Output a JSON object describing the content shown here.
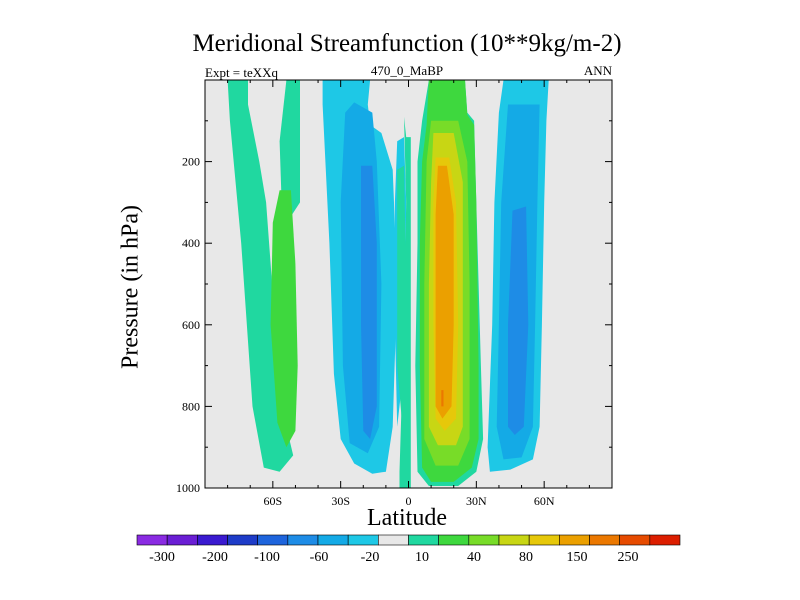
{
  "chart_data": {
    "type": "heatmap",
    "title": "Meridional Streamfunction (10**9kg/m-2)",
    "left_label": "Expt = teXXq",
    "center_label": "470_0_MaBP",
    "right_label": "ANN",
    "xlabel": "Latitude",
    "ylabel": "Pressure (in hPa)",
    "xlim": [
      -90,
      90
    ],
    "ylim": [
      0,
      1000
    ],
    "y_reversed": true,
    "xticks": [
      {
        "value": -60,
        "label": "60S"
      },
      {
        "value": -30,
        "label": "30S"
      },
      {
        "value": 0,
        "label": "0"
      },
      {
        "value": 30,
        "label": "30N"
      },
      {
        "value": 60,
        "label": "60N"
      }
    ],
    "yticks": [
      {
        "value": 200,
        "label": "200"
      },
      {
        "value": 400,
        "label": "400"
      },
      {
        "value": 600,
        "label": "600"
      },
      {
        "value": 800,
        "label": "800"
      },
      {
        "value": 1000,
        "label": "1000"
      }
    ],
    "colorbar": {
      "levels": [
        "-300",
        "-200",
        "-100",
        "-60",
        "-20",
        "10",
        "40",
        "80",
        "150",
        "250"
      ],
      "colors": [
        "#8a2be2",
        "#6a1ed4",
        "#3a1ad0",
        "#1e3cc8",
        "#1e64dc",
        "#1e8ce6",
        "#14aae6",
        "#1ec8e6",
        "#e8e8e8",
        "#20d8a0",
        "#3ed83e",
        "#78dc28",
        "#c8d614",
        "#e6c80a",
        "#eba000",
        "#eb7800",
        "#e64b00",
        "#dc1e00"
      ]
    },
    "background_color": "#e8e8e8",
    "contour_regions": [
      {
        "label": "10 to 40",
        "color": "#20d8a0",
        "points": [
          [
            -80,
            0
          ],
          [
            -71,
            0
          ],
          [
            -71,
            60
          ],
          [
            -66,
            200
          ],
          [
            -63,
            300
          ],
          [
            -59,
            600
          ],
          [
            -54,
            850
          ],
          [
            -51,
            920
          ],
          [
            -57,
            960
          ],
          [
            -64,
            950
          ],
          [
            -69,
            800
          ],
          [
            -74,
            400
          ],
          [
            -79,
            100
          ]
        ]
      },
      {
        "label": "10 to 40",
        "color": "#20d8a0",
        "points": [
          [
            -54,
            0
          ],
          [
            -48,
            0
          ],
          [
            -48,
            30
          ],
          [
            -48,
            200
          ],
          [
            -48,
            300
          ],
          [
            -55,
            360
          ],
          [
            -56,
            320
          ],
          [
            -57,
            150
          ]
        ]
      },
      {
        "label": "40 to 80",
        "color": "#3ed83e",
        "points": [
          [
            -57,
            270
          ],
          [
            -52,
            270
          ],
          [
            -50,
            450
          ],
          [
            -49,
            700
          ],
          [
            -50,
            860
          ],
          [
            -54,
            900
          ],
          [
            -58,
            840
          ],
          [
            -61,
            600
          ],
          [
            -60,
            350
          ]
        ]
      },
      {
        "label": "-20 to 10",
        "color": "#1ec8e6",
        "points": [
          [
            -38,
            0
          ],
          [
            -17,
            0
          ],
          [
            -18,
            60
          ],
          [
            -17,
            110
          ],
          [
            -12,
            130
          ],
          [
            -7,
            220
          ],
          [
            -5,
            500
          ],
          [
            -7,
            850
          ],
          [
            -10,
            960
          ],
          [
            -16,
            965
          ],
          [
            -24,
            940
          ],
          [
            -30,
            880
          ],
          [
            -33,
            720
          ],
          [
            -35,
            400
          ],
          [
            -38,
            60
          ]
        ]
      },
      {
        "label": "-60 to -20",
        "color": "#14aae6",
        "points": [
          [
            -28,
            80
          ],
          [
            -24,
            55
          ],
          [
            -16,
            80
          ],
          [
            -14,
            200
          ],
          [
            -12,
            500
          ],
          [
            -13,
            850
          ],
          [
            -18,
            915
          ],
          [
            -26,
            890
          ],
          [
            -29,
            700
          ],
          [
            -30,
            300
          ]
        ]
      },
      {
        "label": "-100 to -60",
        "color": "#1e8ce6",
        "points": [
          [
            -21,
            210
          ],
          [
            -16,
            210
          ],
          [
            -14,
            400
          ],
          [
            -14,
            800
          ],
          [
            -17,
            880
          ],
          [
            -20,
            860
          ],
          [
            -21,
            600
          ]
        ]
      },
      {
        "label": "-20 to 10",
        "color": "#1ec8e6",
        "points": [
          [
            -5,
            150
          ],
          [
            -2,
            140
          ],
          [
            -1,
            300
          ],
          [
            -2,
            700
          ],
          [
            -5,
            850
          ],
          [
            -6,
            600
          ],
          [
            -6,
            300
          ]
        ]
      },
      {
        "label": "10 to 40",
        "color": "#20d8a0",
        "points": [
          [
            -5,
            220
          ],
          [
            -2,
            210
          ],
          [
            -1,
            500
          ],
          [
            -3,
            830
          ],
          [
            -5,
            700
          ]
        ]
      },
      {
        "label": "10 to 40",
        "color": "#20d8a0",
        "points": [
          [
            -2,
            90
          ],
          [
            -1,
            140
          ],
          [
            1,
            140
          ],
          [
            1,
            1000
          ],
          [
            -4,
            1000
          ],
          [
            -4,
            960
          ],
          [
            -2,
            600
          ],
          [
            -1,
            300
          ]
        ]
      },
      {
        "label": "10 to 40",
        "color": "#20d8a0",
        "points": [
          [
            9,
            0
          ],
          [
            25,
            0
          ],
          [
            26,
            80
          ],
          [
            29,
            100
          ],
          [
            30,
            300
          ],
          [
            32,
            700
          ],
          [
            33,
            880
          ],
          [
            30,
            960
          ],
          [
            22,
            995
          ],
          [
            9,
            995
          ],
          [
            4,
            960
          ],
          [
            3,
            700
          ],
          [
            4,
            400
          ],
          [
            4,
            200
          ],
          [
            6,
            100
          ]
        ]
      },
      {
        "label": "40 to 80",
        "color": "#3ed83e",
        "points": [
          [
            9,
            0
          ],
          [
            25,
            0
          ],
          [
            26,
            85
          ],
          [
            29,
            110
          ],
          [
            30,
            300
          ],
          [
            31,
            700
          ],
          [
            31,
            880
          ],
          [
            28,
            950
          ],
          [
            20,
            985
          ],
          [
            10,
            985
          ],
          [
            6,
            950
          ],
          [
            5,
            700
          ],
          [
            5,
            400
          ],
          [
            6,
            200
          ],
          [
            8,
            110
          ]
        ]
      },
      {
        "label": "80 to 150",
        "color": "#78dc28",
        "points": [
          [
            10,
            100
          ],
          [
            22,
            100
          ],
          [
            26,
            200
          ],
          [
            27,
            500
          ],
          [
            27,
            880
          ],
          [
            22,
            945
          ],
          [
            12,
            945
          ],
          [
            7,
            880
          ],
          [
            7,
            500
          ],
          [
            8,
            200
          ]
        ]
      },
      {
        "label": "150 to 250",
        "color": "#c8d614",
        "points": [
          [
            11,
            130
          ],
          [
            20,
            130
          ],
          [
            24,
            250
          ],
          [
            24,
            600
          ],
          [
            24,
            850
          ],
          [
            21,
            895
          ],
          [
            13,
            895
          ],
          [
            9,
            850
          ],
          [
            9,
            500
          ],
          [
            10,
            250
          ]
        ]
      },
      {
        "label": "250 to 300",
        "color": "#e6c80a",
        "points": [
          [
            12,
            190
          ],
          [
            18,
            190
          ],
          [
            21,
            300
          ],
          [
            22,
            600
          ],
          [
            21,
            830
          ],
          [
            16,
            860
          ],
          [
            12,
            830
          ],
          [
            11,
            600
          ],
          [
            11,
            300
          ]
        ]
      },
      {
        "label": "300+",
        "color": "#eba000",
        "points": [
          [
            13,
            210
          ],
          [
            17,
            210
          ],
          [
            20,
            330
          ],
          [
            20,
            600
          ],
          [
            19,
            800
          ],
          [
            15,
            830
          ],
          [
            12,
            800
          ],
          [
            12,
            600
          ],
          [
            12,
            330
          ]
        ]
      },
      {
        "label": "max",
        "color": "#eb7800",
        "points": [
          [
            14.5,
            760
          ],
          [
            15.5,
            760
          ],
          [
            15.5,
            800
          ],
          [
            14.5,
            800
          ]
        ]
      },
      {
        "label": "-20 to 10",
        "color": "#1ec8e6",
        "points": [
          [
            42,
            0
          ],
          [
            62,
            0
          ],
          [
            61,
            100
          ],
          [
            60,
            300
          ],
          [
            59,
            600
          ],
          [
            58,
            850
          ],
          [
            55,
            930
          ],
          [
            45,
            955
          ],
          [
            36,
            960
          ],
          [
            35,
            900
          ],
          [
            37,
            600
          ],
          [
            38,
            300
          ],
          [
            40,
            80
          ]
        ]
      },
      {
        "label": "-60 to -20",
        "color": "#14aae6",
        "points": [
          [
            44,
            60
          ],
          [
            58,
            60
          ],
          [
            57,
            300
          ],
          [
            56,
            600
          ],
          [
            55,
            850
          ],
          [
            50,
            925
          ],
          [
            42,
            930
          ],
          [
            39,
            850
          ],
          [
            40,
            600
          ],
          [
            41,
            300
          ]
        ]
      },
      {
        "label": "-100 to -60",
        "color": "#1e8ce6",
        "points": [
          [
            46,
            320
          ],
          [
            52,
            310
          ],
          [
            53,
            600
          ],
          [
            51,
            850
          ],
          [
            47,
            870
          ],
          [
            44,
            850
          ],
          [
            44,
            600
          ]
        ]
      }
    ]
  }
}
